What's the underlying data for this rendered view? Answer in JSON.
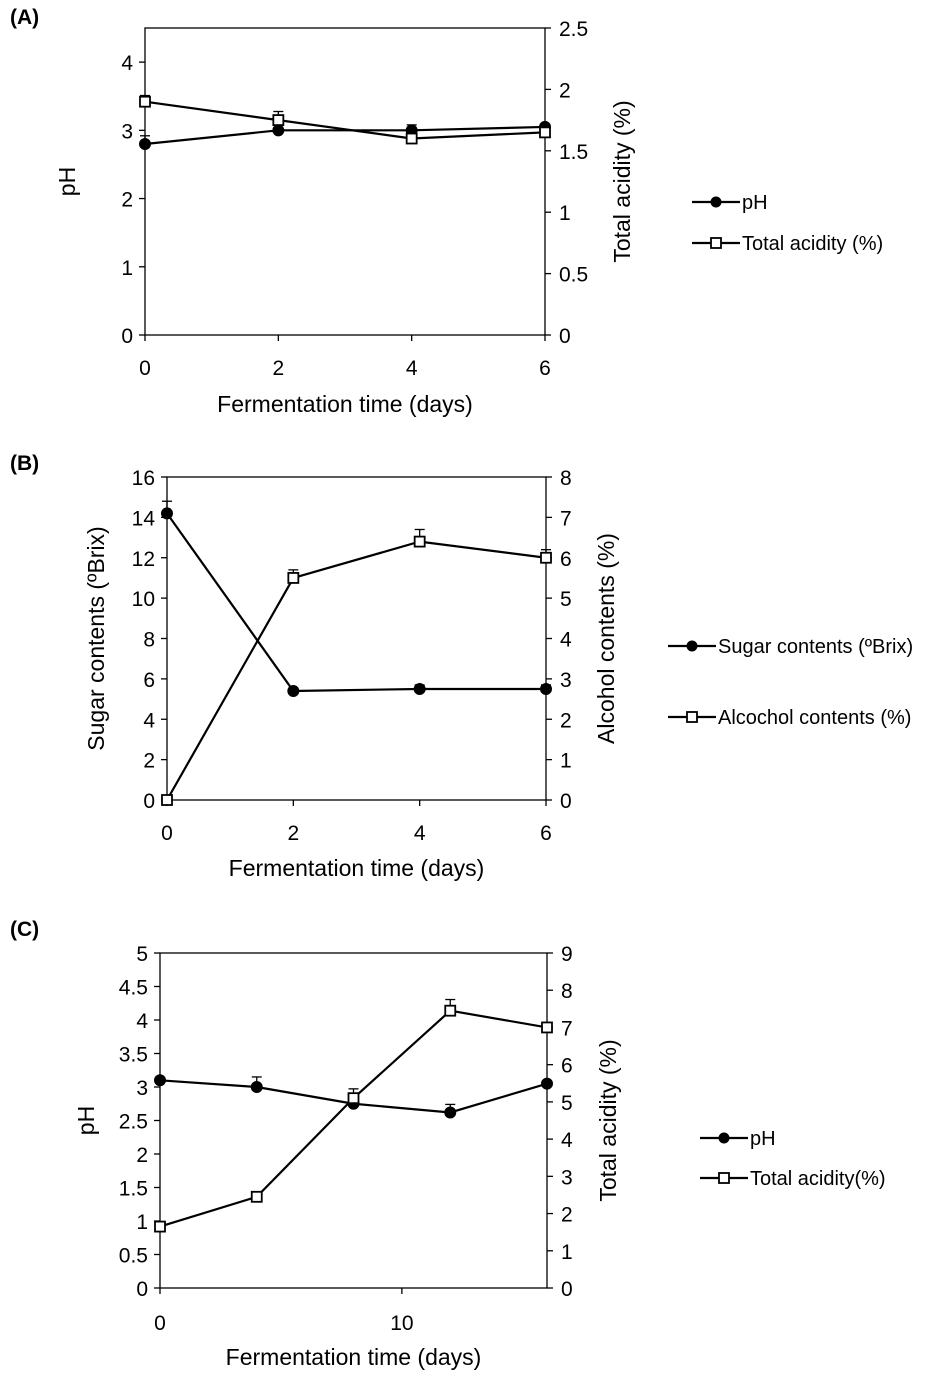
{
  "chart_data": [
    {
      "type": "line",
      "panel_label": "(A)",
      "xlabel": "Fermentation time (days)",
      "ylabel": "pH",
      "y2label": "Total acidity (%)",
      "x_ticks": [
        0,
        2,
        4,
        6
      ],
      "y_ticks": [
        0,
        1,
        2,
        3,
        4
      ],
      "y2_ticks": [
        0,
        0.5,
        1,
        1.5,
        2,
        2.5
      ],
      "xlim": [
        0,
        6
      ],
      "ylim": [
        0,
        4.5
      ],
      "y2lim": [
        0,
        2.5
      ],
      "legend_position": "right",
      "series": [
        {
          "name": "pH",
          "axis": "left",
          "marker": "filled-circle",
          "x": [
            0,
            2,
            4,
            6
          ],
          "values": [
            2.8,
            3.0,
            3.0,
            3.05
          ],
          "errors": [
            0.12,
            0,
            0.08,
            0
          ]
        },
        {
          "name": "Total acidity (%)",
          "axis": "right",
          "marker": "open-square",
          "x": [
            0,
            2,
            4,
            6
          ],
          "values": [
            1.9,
            1.75,
            1.6,
            1.65
          ],
          "errors": [
            0.05,
            0.07,
            0,
            0
          ]
        }
      ]
    },
    {
      "type": "line",
      "panel_label": "(B)",
      "xlabel": "Fermentation time (days)",
      "ylabel": "Sugar contents (ºBrix)",
      "y2label": "Alcohol contents (%)",
      "x_ticks": [
        0,
        2,
        4,
        6
      ],
      "y_ticks": [
        0,
        2,
        4,
        6,
        8,
        10,
        12,
        14,
        16
      ],
      "y2_ticks": [
        0,
        1,
        2,
        3,
        4,
        5,
        6,
        7,
        8
      ],
      "xlim": [
        0,
        6
      ],
      "ylim": [
        0,
        16
      ],
      "y2lim": [
        0,
        8
      ],
      "legend_position": "right",
      "series": [
        {
          "name": "Sugar contents (ºBrix)",
          "axis": "left",
          "marker": "filled-circle",
          "x": [
            0,
            2,
            4,
            6
          ],
          "values": [
            14.2,
            5.4,
            5.5,
            5.5
          ],
          "errors": [
            0.6,
            0,
            0.2,
            0.2
          ]
        },
        {
          "name": "Alcochol contents (%)",
          "axis": "right",
          "marker": "open-square",
          "x": [
            0,
            2,
            4,
            6
          ],
          "values": [
            0,
            5.5,
            6.4,
            6.0
          ],
          "errors": [
            0,
            0.2,
            0.3,
            0.2
          ]
        }
      ]
    },
    {
      "type": "line",
      "panel_label": "(C)",
      "xlabel": "Fermentation time (days)",
      "ylabel": "pH",
      "y2label": "Total acidity (%)",
      "x_ticks": [
        0,
        10
      ],
      "y_ticks": [
        0,
        0.5,
        1,
        1.5,
        2,
        2.5,
        3,
        3.5,
        4,
        4.5,
        5
      ],
      "y2_ticks": [
        0,
        1,
        2,
        3,
        4,
        5,
        6,
        7,
        8,
        9
      ],
      "xlim": [
        0,
        16
      ],
      "ylim": [
        0,
        5
      ],
      "y2lim": [
        0,
        9
      ],
      "legend_position": "right",
      "series": [
        {
          "name": "pH",
          "axis": "left",
          "marker": "filled-circle",
          "x": [
            0,
            4,
            8,
            12,
            16
          ],
          "values": [
            3.1,
            3.0,
            2.75,
            2.62,
            3.05
          ],
          "errors": [
            0,
            0.15,
            0,
            0.12,
            0
          ]
        },
        {
          "name": "Total acidity(%)",
          "axis": "right",
          "marker": "open-square",
          "x": [
            0,
            4,
            8,
            12,
            16
          ],
          "values": [
            1.65,
            2.45,
            5.1,
            7.45,
            7.0
          ],
          "errors": [
            0,
            0,
            0.25,
            0.3,
            0
          ]
        }
      ]
    }
  ]
}
